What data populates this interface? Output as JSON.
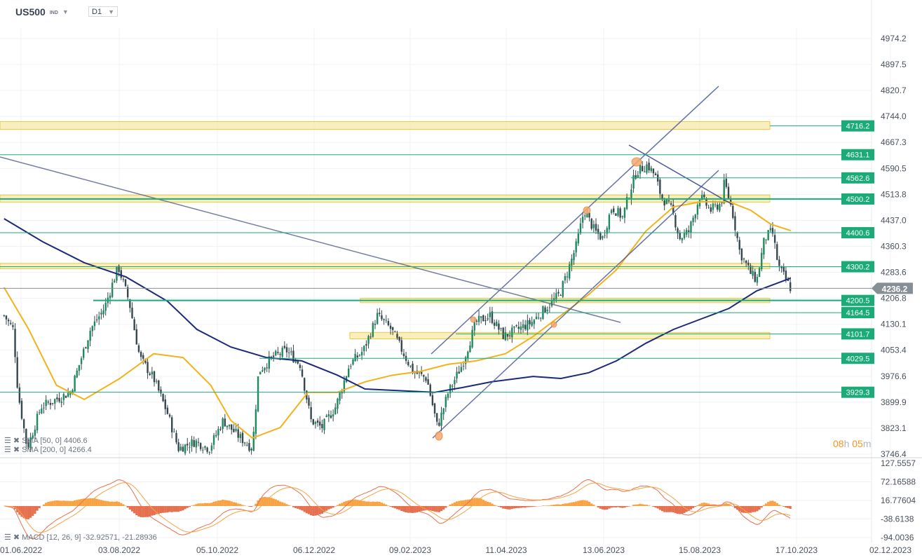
{
  "header": {
    "symbol": "US500",
    "symbol_type": "IND",
    "timeframe": "D1"
  },
  "colors": {
    "level": "#1aab78",
    "zone": "#f7e9a8",
    "zone_border": "#e6b800",
    "sma50": "#f2b21b",
    "sma200": "#1c2a7a",
    "trend": "#4d5a9c",
    "candle_up": "#1d8a5e",
    "candle_down": "#37474f",
    "macd_pos": "#f7a344",
    "macd_neg": "#e5704f",
    "current": "#868e96"
  },
  "price_axis": [
    "4974.2",
    "4897.5",
    "4820.7",
    "4744.0",
    "4667.3",
    "4590.5",
    "4513.8",
    "4437.0",
    "4360.3",
    "4283.6",
    "4206.8",
    "4130.1",
    "4053.4",
    "3976.6",
    "3899.9",
    "3823.1",
    "3746.4"
  ],
  "macd_axis": [
    "127.5557",
    "72.16588",
    "16.77604",
    "-38.6138",
    "-94.0036"
  ],
  "date_axis": [
    "01.06.2022",
    "03.08.2022",
    "05.10.2022",
    "06.12.2022",
    "09.02.2023",
    "11.04.2023",
    "13.06.2023",
    "15.08.2023",
    "17.10.2023",
    "02.12.2023"
  ],
  "levels": [
    "4716.2",
    "4631.1",
    "4562.6",
    "4500.2",
    "4400.6",
    "4300.2",
    "4200.5",
    "4164.5",
    "4101.7",
    "4029.5",
    "3929.3"
  ],
  "current_price": "4236.2",
  "legends": {
    "sma50": "SMA [50, 0] 4406.6",
    "sma200": "SMA [200, 0] 4266.4",
    "macd": "MACD [12, 26, 9] -32.92571, -21.28936"
  },
  "timer": {
    "hours": "08",
    "h": "h",
    "minutes": "05",
    "m": "m"
  },
  "chart_data": {
    "type": "candlestick",
    "y_range": [
      3746.4,
      4974.2
    ],
    "grid": true,
    "close_path": [
      [
        "2022-05-21",
        4156
      ],
      [
        "2022-05-27",
        4115
      ],
      [
        "2022-05-30",
        3929
      ],
      [
        "2022-06-05",
        3763
      ],
      [
        "2022-06-14",
        3887
      ],
      [
        "2022-07-03",
        3929
      ],
      [
        "2022-07-16",
        4115
      ],
      [
        "2022-07-25",
        4177
      ],
      [
        "2022-08-03",
        4301
      ],
      [
        "2022-08-10",
        4198
      ],
      [
        "2022-08-17",
        4032
      ],
      [
        "2022-08-26",
        3970
      ],
      [
        "2022-09-04",
        3866
      ],
      [
        "2022-09-11",
        3763
      ],
      [
        "2022-09-22",
        3784
      ],
      [
        "2022-10-01",
        3763
      ],
      [
        "2022-10-10",
        3846
      ],
      [
        "2022-10-19",
        3804
      ],
      [
        "2022-10-29",
        3763
      ],
      [
        "2022-11-02",
        3991
      ],
      [
        "2022-11-11",
        4032
      ],
      [
        "2022-11-20",
        4053
      ],
      [
        "2022-11-29",
        4011
      ],
      [
        "2022-12-06",
        3846
      ],
      [
        "2022-12-13",
        3825
      ],
      [
        "2022-12-22",
        3887
      ],
      [
        "2022-12-31",
        4011
      ],
      [
        "2023-01-09",
        4053
      ],
      [
        "2023-01-18",
        4156
      ],
      [
        "2023-01-27",
        4115
      ],
      [
        "2023-02-03",
        4053
      ],
      [
        "2023-02-10",
        3991
      ],
      [
        "2023-02-19",
        3970
      ],
      [
        "2023-02-26",
        3825
      ],
      [
        "2023-03-05",
        3929
      ],
      [
        "2023-03-14",
        4011
      ],
      [
        "2023-03-23",
        4136
      ],
      [
        "2023-04-01",
        4156
      ],
      [
        "2023-04-10",
        4094
      ],
      [
        "2023-04-19",
        4115
      ],
      [
        "2023-04-28",
        4136
      ],
      [
        "2023-05-07",
        4177
      ],
      [
        "2023-05-16",
        4218
      ],
      [
        "2023-05-21",
        4281
      ],
      [
        "2023-05-27",
        4363
      ],
      [
        "2023-06-01",
        4467
      ],
      [
        "2023-06-08",
        4405
      ],
      [
        "2023-06-13",
        4384
      ],
      [
        "2023-06-19",
        4477
      ],
      [
        "2023-06-26",
        4446
      ],
      [
        "2023-07-01",
        4529
      ],
      [
        "2023-07-05",
        4581
      ],
      [
        "2023-07-12",
        4601
      ],
      [
        "2023-07-17",
        4570
      ],
      [
        "2023-07-21",
        4508
      ],
      [
        "2023-07-28",
        4467
      ],
      [
        "2023-08-02",
        4384
      ],
      [
        "2023-08-08",
        4405
      ],
      [
        "2023-08-15",
        4508
      ],
      [
        "2023-08-22",
        4467
      ],
      [
        "2023-08-29",
        4488
      ],
      [
        "2023-08-31",
        4550
      ],
      [
        "2023-09-05",
        4467
      ],
      [
        "2023-09-10",
        4343
      ],
      [
        "2023-09-17",
        4281
      ],
      [
        "2023-09-21",
        4260
      ],
      [
        "2023-09-26",
        4384
      ],
      [
        "2023-10-01",
        4405
      ],
      [
        "2023-10-05",
        4301
      ],
      [
        "2023-10-13",
        4236
      ]
    ],
    "sma50": [
      [
        "2022-05-21",
        4239
      ],
      [
        "2022-06-06",
        4115
      ],
      [
        "2022-06-24",
        3950
      ],
      [
        "2022-07-12",
        3908
      ],
      [
        "2022-08-04",
        3970
      ],
      [
        "2022-08-26",
        4043
      ],
      [
        "2022-09-14",
        4032
      ],
      [
        "2022-10-02",
        3950
      ],
      [
        "2022-10-15",
        3846
      ],
      [
        "2022-10-29",
        3794
      ],
      [
        "2022-11-16",
        3825
      ],
      [
        "2022-12-04",
        3929
      ],
      [
        "2022-12-23",
        3929
      ],
      [
        "2023-01-10",
        3960
      ],
      [
        "2023-01-28",
        3980
      ],
      [
        "2023-02-15",
        3991
      ],
      [
        "2023-03-05",
        4012
      ],
      [
        "2023-03-23",
        4022
      ],
      [
        "2023-04-11",
        4043
      ],
      [
        "2023-04-29",
        4094
      ],
      [
        "2023-05-17",
        4156
      ],
      [
        "2023-06-04",
        4218
      ],
      [
        "2023-06-22",
        4291
      ],
      [
        "2023-07-11",
        4405
      ],
      [
        "2023-07-29",
        4477
      ],
      [
        "2023-08-16",
        4492
      ],
      [
        "2023-09-03",
        4492
      ],
      [
        "2023-09-17",
        4467
      ],
      [
        "2023-09-30",
        4426
      ],
      [
        "2023-10-13",
        4406.6
      ]
    ],
    "sma200": [
      [
        "2022-05-21",
        4442
      ],
      [
        "2022-06-15",
        4374
      ],
      [
        "2022-07-12",
        4312
      ],
      [
        "2022-08-08",
        4270
      ],
      [
        "2022-09-04",
        4198
      ],
      [
        "2022-09-23",
        4115
      ],
      [
        "2022-10-15",
        4063
      ],
      [
        "2022-11-07",
        4032
      ],
      [
        "2022-11-30",
        4022
      ],
      [
        "2022-12-23",
        3980
      ],
      [
        "2023-01-10",
        3939
      ],
      [
        "2023-02-06",
        3933
      ],
      [
        "2023-02-24",
        3929
      ],
      [
        "2023-03-14",
        3943
      ],
      [
        "2023-04-02",
        3960
      ],
      [
        "2023-04-29",
        3976
      ],
      [
        "2023-05-17",
        3970
      ],
      [
        "2023-06-04",
        3987
      ],
      [
        "2023-06-22",
        4022
      ],
      [
        "2023-07-11",
        4074
      ],
      [
        "2023-07-29",
        4115
      ],
      [
        "2023-08-16",
        4146
      ],
      [
        "2023-09-03",
        4177
      ],
      [
        "2023-09-21",
        4229
      ],
      [
        "2023-10-13",
        4266.4
      ]
    ]
  }
}
